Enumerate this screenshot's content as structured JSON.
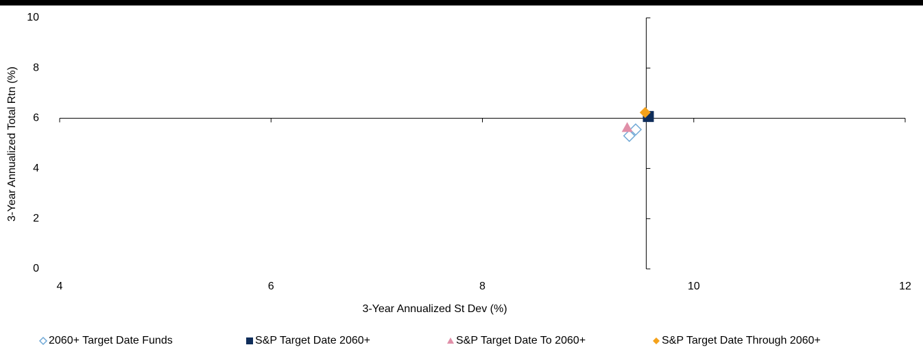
{
  "chart_data": {
    "type": "scatter",
    "x_label": "3-Year Annualized St Dev (%)",
    "y_label": "3-Year Annualized Total Rtn (%)",
    "xlim": [
      4,
      12
    ],
    "xticks": [
      4,
      6,
      8,
      10,
      12
    ],
    "ylim": [
      0,
      10
    ],
    "yticks": [
      0,
      2,
      4,
      6,
      8,
      10
    ],
    "x_axis_crosses_y": 6.0,
    "y_axis_crosses_x": 9.55,
    "series": [
      {
        "name": "2060+ Target Date Funds",
        "color": "#6fa8d6",
        "marker": "diamond-open",
        "x": [
          9.39,
          9.45
        ],
        "values": [
          5.3,
          5.55
        ]
      },
      {
        "name": "S&P Target Date 2060+",
        "color": "#0f2d5a",
        "marker": "square",
        "x": [
          9.57
        ],
        "values": [
          6.07
        ]
      },
      {
        "name": "S&P Target Date To 2060+",
        "color": "#e08fa8",
        "marker": "triangle",
        "x": [
          9.37
        ],
        "values": [
          5.63
        ]
      },
      {
        "name": "S&P Target Date Through 2060+",
        "color": "#f5a21b",
        "marker": "diamond",
        "x": [
          9.54
        ],
        "values": [
          6.23
        ]
      }
    ]
  }
}
